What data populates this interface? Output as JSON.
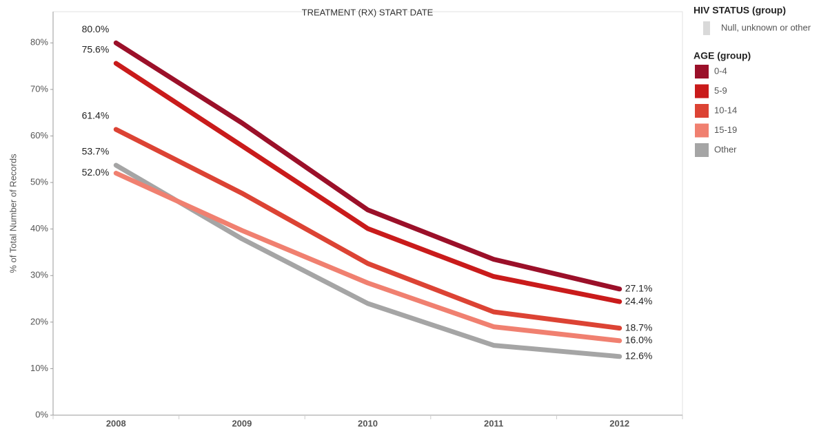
{
  "chart_data": {
    "type": "line",
    "title": "TREATMENT (RX) START DATE",
    "y_label": "% of Total Number of Records",
    "categories": [
      "2008",
      "2009",
      "2010",
      "2011",
      "2012"
    ],
    "ylim": [
      0,
      86.7
    ],
    "yticks": [
      {
        "value": 0,
        "label": "0%"
      },
      {
        "value": 10,
        "label": "10%"
      },
      {
        "value": 20,
        "label": "20%"
      },
      {
        "value": 30,
        "label": "30%"
      },
      {
        "value": 40,
        "label": "40%"
      },
      {
        "value": 50,
        "label": "50%"
      },
      {
        "value": 60,
        "label": "60%"
      },
      {
        "value": 70,
        "label": "70%"
      },
      {
        "value": 80,
        "label": "80%"
      }
    ],
    "hiv_legend": {
      "title": "HIV STATUS (group)",
      "items": [
        {
          "name": "Null, unknown or other",
          "color": "#d9d9d9"
        }
      ]
    },
    "legend_title": "AGE (group)",
    "series": [
      {
        "name": "0-4",
        "color": "#9b1029",
        "values": [
          80.0,
          62.8,
          44.1,
          33.5,
          27.1
        ],
        "value_labels": [
          "80.0%",
          null,
          null,
          null,
          "27.1%"
        ]
      },
      {
        "name": "5-9",
        "color": "#c91b1b",
        "values": [
          75.6,
          57.9,
          40.1,
          29.8,
          24.4
        ],
        "value_labels": [
          "75.6%",
          null,
          null,
          null,
          "24.4%"
        ]
      },
      {
        "name": "10-14",
        "color": "#dc4334",
        "values": [
          61.4,
          47.7,
          32.6,
          22.2,
          18.7
        ],
        "value_labels": [
          "61.4%",
          null,
          null,
          null,
          "18.7%"
        ]
      },
      {
        "name": "15-19",
        "color": "#f08070",
        "values": [
          52.0,
          39.7,
          28.4,
          19.0,
          16.0
        ],
        "value_labels": [
          "52.0%",
          null,
          null,
          null,
          "16.0%"
        ]
      },
      {
        "name": "Other",
        "color": "#a5a5a5",
        "values": [
          53.7,
          37.9,
          24.0,
          15.0,
          12.6
        ],
        "value_labels": [
          "53.7%",
          null,
          null,
          null,
          "12.6%"
        ]
      }
    ]
  }
}
